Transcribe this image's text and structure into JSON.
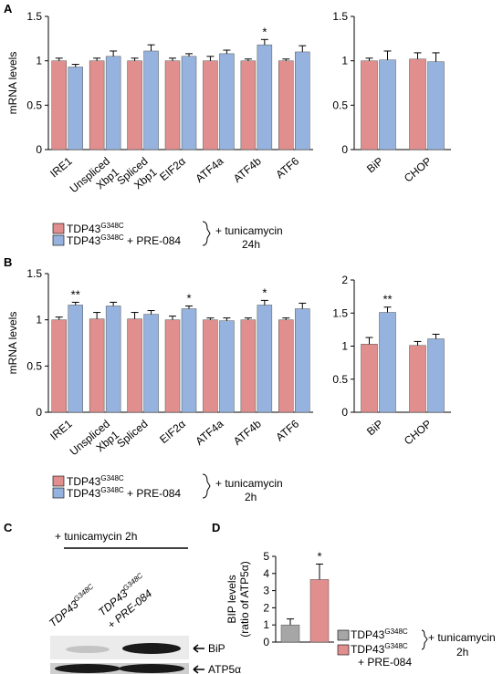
{
  "colors": {
    "control": "#e08e8e",
    "treated": "#95b3de",
    "gray": "#a6a6a6",
    "axis": "#000000"
  },
  "panels": {
    "A": "A",
    "B": "B",
    "C": "C",
    "D": "D"
  },
  "legend_AB": {
    "series1_main": "TDP43",
    "series1_sup": "G348C",
    "series1_tail": "",
    "series2_main": "TDP43",
    "series2_sup": "G348C",
    "series2_tail": " + PRE-084",
    "bracket_label": "+ tunicamycin"
  },
  "legend_A_time": "24h",
  "legend_B_time": "2h",
  "westernC": {
    "header": "+ tunicamycin 2h",
    "lane1_main": "TDP43",
    "lane1_sup": "G348C",
    "lane2_main": "TDP43",
    "lane2_sup": "G348C",
    "lane2_tail": "+ PRE-084",
    "band1": "BiP",
    "band2": "ATP5α"
  },
  "legend_D": {
    "series1_main": "TDP43",
    "series1_sup": "G348C",
    "series2_main": "TDP43",
    "series2_sup": "G348C",
    "series2_tail": "+ PRE-084",
    "bracket_label": "+ tunicamycin",
    "time": "2h"
  },
  "chart_data": [
    {
      "id": "A-left",
      "type": "bar",
      "ylabel": "mRNA levels",
      "ylim": [
        0,
        1.5
      ],
      "yticks": [
        "0",
        "0.5",
        "1",
        "1.5"
      ],
      "categories": [
        "IRE1",
        "Unspliced\nXbp1",
        "Spliced\nXbp1",
        "EIF2α",
        "ATF4a",
        "ATF4b",
        "ATF6"
      ],
      "series": [
        {
          "name": "TDP43G348C",
          "values": [
            1.0,
            1.0,
            1.0,
            1.0,
            1.0,
            1.0,
            1.0
          ],
          "errors": [
            0.03,
            0.03,
            0.03,
            0.03,
            0.05,
            0.02,
            0.02
          ]
        },
        {
          "name": "TDP43G348C + PRE-084",
          "values": [
            0.93,
            1.05,
            1.11,
            1.05,
            1.08,
            1.18,
            1.1
          ],
          "errors": [
            0.03,
            0.06,
            0.07,
            0.03,
            0.04,
            0.06,
            0.07
          ]
        }
      ],
      "annotations": [
        "",
        "",
        "",
        "",
        "",
        "*",
        ""
      ]
    },
    {
      "id": "A-right",
      "type": "bar",
      "ylim": [
        0,
        1.5
      ],
      "yticks": [
        "0",
        "0.5",
        "1",
        "1.5"
      ],
      "categories": [
        "BiP",
        "CHOP"
      ],
      "series": [
        {
          "name": "TDP43G348C",
          "values": [
            1.0,
            1.02
          ],
          "errors": [
            0.03,
            0.07
          ]
        },
        {
          "name": "TDP43G348C + PRE-084",
          "values": [
            1.01,
            0.99
          ],
          "errors": [
            0.1,
            0.1
          ]
        }
      ],
      "annotations": [
        "",
        ""
      ]
    },
    {
      "id": "B-left",
      "type": "bar",
      "ylabel": "mRNA levels",
      "ylim": [
        0,
        1.5
      ],
      "yticks": [
        "0",
        "0.5",
        "1",
        "1.5"
      ],
      "categories": [
        "IRE1",
        "Unspliced\nXbp1",
        "Spliced",
        "EIF2α",
        "ATF4a",
        "ATF4b",
        "ATF6"
      ],
      "series": [
        {
          "name": "TDP43G348C",
          "values": [
            1.0,
            1.01,
            1.01,
            1.0,
            1.0,
            1.0,
            1.0
          ],
          "errors": [
            0.03,
            0.07,
            0.07,
            0.04,
            0.02,
            0.02,
            0.02
          ]
        },
        {
          "name": "TDP43G348C + PRE-084",
          "values": [
            1.16,
            1.15,
            1.06,
            1.12,
            0.99,
            1.16,
            1.12
          ],
          "errors": [
            0.03,
            0.04,
            0.04,
            0.03,
            0.03,
            0.05,
            0.06
          ]
        }
      ],
      "annotations": [
        "**",
        "",
        "",
        "*",
        "",
        "*",
        ""
      ]
    },
    {
      "id": "B-right",
      "type": "bar",
      "ylim": [
        0,
        2
      ],
      "yticks": [
        "0",
        "0.5",
        "1",
        "1.5",
        "2"
      ],
      "categories": [
        "BiP",
        "CHOP"
      ],
      "series": [
        {
          "name": "TDP43G348C",
          "values": [
            1.03,
            1.01
          ],
          "errors": [
            0.1,
            0.06
          ]
        },
        {
          "name": "TDP43G348C + PRE-084",
          "values": [
            1.51,
            1.11
          ],
          "errors": [
            0.08,
            0.07
          ]
        }
      ],
      "annotations": [
        "**",
        ""
      ]
    },
    {
      "id": "D",
      "type": "bar",
      "ylabel": "BIP levels\n(ratio of ATP5α)",
      "ylim": [
        0,
        5
      ],
      "yticks": [
        "0",
        "1",
        "2",
        "3",
        "4",
        "5"
      ],
      "categories": [
        "TDP43G348C",
        "TDP43G348C + PRE-084"
      ],
      "values": [
        1.0,
        3.65
      ],
      "errors": [
        0.35,
        0.9
      ],
      "annotations": [
        "",
        "*"
      ]
    }
  ]
}
